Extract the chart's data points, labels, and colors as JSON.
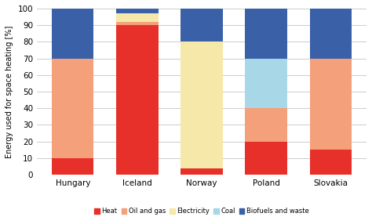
{
  "categories": [
    "Hungary",
    "Iceland",
    "Norway",
    "Poland",
    "Slovakia"
  ],
  "series": {
    "Heat": [
      10,
      90,
      4,
      20,
      15
    ],
    "Oil and gas": [
      60,
      2,
      0,
      20,
      55
    ],
    "Electricity": [
      0,
      5,
      76,
      0,
      0
    ],
    "Coal": [
      0,
      0,
      0,
      30,
      0
    ],
    "Biofuels and waste": [
      30,
      3,
      20,
      30,
      30
    ]
  },
  "colors": {
    "Heat": "#E8302A",
    "Oil and gas": "#F4A07A",
    "Electricity": "#F5E8A8",
    "Coal": "#A8D8E8",
    "Biofuels and waste": "#3A60A8"
  },
  "ylabel": "Energy used for space heating [%]",
  "ylim": [
    0,
    100
  ],
  "yticks": [
    0,
    10,
    20,
    30,
    40,
    50,
    60,
    70,
    80,
    90,
    100
  ],
  "bar_width": 0.65,
  "background_color": "#ffffff",
  "grid_color": "#cccccc",
  "legend_order": [
    "Heat",
    "Oil and gas",
    "Electricity",
    "Coal",
    "Biofuels and waste"
  ]
}
